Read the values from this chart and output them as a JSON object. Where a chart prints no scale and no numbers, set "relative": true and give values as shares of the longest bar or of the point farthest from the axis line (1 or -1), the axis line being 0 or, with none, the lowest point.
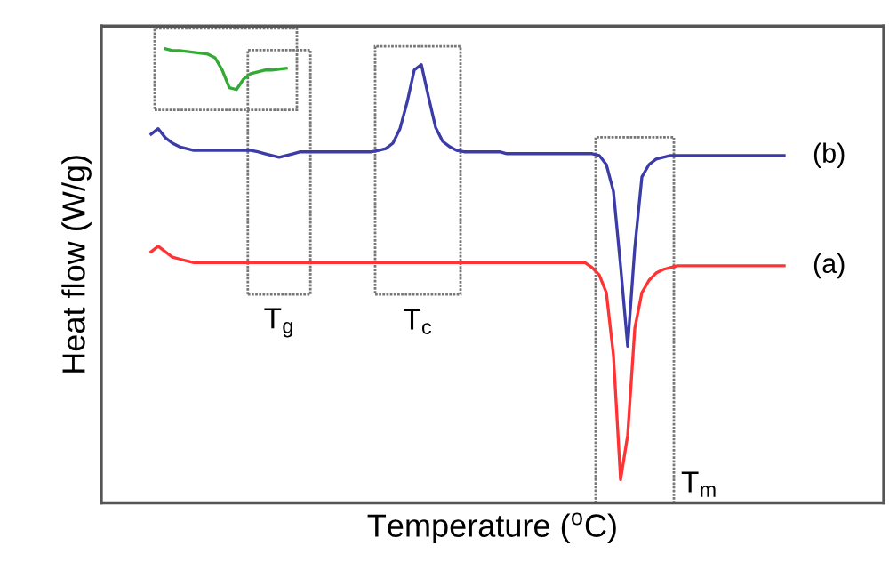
{
  "chart_data": {
    "type": "line",
    "relative": true,
    "xlabel": "Temperature ($^{o}$C)",
    "ylabel": "Heat flow (W/g)",
    "legend": false,
    "marker": "none",
    "line_style": "solid",
    "categories": [
      null,
      null,
      null,
      null,
      null,
      null,
      null,
      null,
      null,
      null,
      null,
      null,
      null,
      null,
      null,
      null,
      null,
      null,
      null,
      null,
      null,
      null,
      null,
      null,
      null,
      null,
      null,
      null,
      null,
      null,
      null,
      null,
      null,
      null,
      null,
      null,
      null,
      null,
      null,
      null,
      null,
      null,
      null,
      null,
      null,
      null,
      null,
      null,
      null,
      null,
      null,
      null,
      null,
      null,
      null,
      null,
      null,
      null,
      null,
      null,
      null,
      null,
      null,
      null,
      null,
      null,
      null,
      null,
      null,
      null,
      null,
      null,
      null,
      null,
      null,
      null,
      null,
      null,
      null,
      null,
      null,
      null,
      null,
      null,
      null,
      null,
      null,
      null,
      null,
      null
    ],
    "series": [
      {
        "name": "(b)",
        "color": "#3c3ca8",
        "values": [
          0.812,
          0.824,
          0.804,
          0.792,
          0.784,
          0.78,
          0.776,
          0.776,
          0.776,
          0.776,
          0.776,
          0.776,
          0.776,
          0.776,
          0.776,
          0.773,
          0.769,
          0.765,
          0.761,
          0.765,
          0.769,
          0.773,
          0.773,
          0.773,
          0.773,
          0.773,
          0.773,
          0.773,
          0.773,
          0.773,
          0.773,
          0.773,
          0.776,
          0.78,
          0.792,
          0.824,
          0.882,
          0.953,
          0.965,
          0.894,
          0.827,
          0.796,
          0.784,
          0.776,
          0.773,
          0.773,
          0.773,
          0.773,
          0.773,
          0.773,
          0.769,
          0.769,
          0.769,
          0.769,
          0.769,
          0.769,
          0.769,
          0.769,
          0.769,
          0.769,
          0.769,
          0.769,
          0.769,
          0.765,
          0.745,
          0.686,
          0.522,
          0.345,
          0.561,
          0.718,
          0.745,
          0.757,
          0.761,
          0.765,
          0.765,
          0.765,
          0.765,
          0.765,
          0.765,
          0.765,
          0.765,
          0.765,
          0.765,
          0.765,
          0.765,
          0.765,
          0.765,
          0.765,
          0.765,
          0.765
        ]
      },
      {
        "name": "(a)",
        "color": "#ff3333",
        "values": [
          0.553,
          0.565,
          0.553,
          0.541,
          0.537,
          0.533,
          0.529,
          0.529,
          0.529,
          0.529,
          0.529,
          0.529,
          0.529,
          0.529,
          0.529,
          0.529,
          0.529,
          0.529,
          0.529,
          0.529,
          0.529,
          0.529,
          0.529,
          0.529,
          0.529,
          0.529,
          0.529,
          0.529,
          0.529,
          0.529,
          0.529,
          0.529,
          0.529,
          0.529,
          0.529,
          0.529,
          0.529,
          0.529,
          0.529,
          0.529,
          0.529,
          0.529,
          0.529,
          0.529,
          0.529,
          0.529,
          0.529,
          0.529,
          0.529,
          0.529,
          0.529,
          0.529,
          0.529,
          0.529,
          0.529,
          0.529,
          0.529,
          0.529,
          0.529,
          0.529,
          0.529,
          0.529,
          0.518,
          0.502,
          0.463,
          0.325,
          0.051,
          0.149,
          0.384,
          0.463,
          0.49,
          0.506,
          0.514,
          0.518,
          0.522,
          0.522,
          0.522,
          0.522,
          0.522,
          0.522,
          0.522,
          0.522,
          0.522,
          0.522,
          0.522,
          0.522,
          0.522,
          0.522,
          0.522,
          0.522
        ]
      },
      {
        "color": "#33aa33",
        "values": [
          null,
          null,
          1.0,
          0.996,
          0.996,
          0.994,
          0.992,
          0.99,
          0.988,
          0.98,
          0.953,
          0.914,
          0.91,
          0.933,
          0.945,
          0.949,
          0.953,
          0.953,
          0.955,
          0.957,
          null,
          null,
          null,
          null,
          null,
          null,
          null,
          null,
          null,
          null,
          null,
          null,
          null,
          null,
          null,
          null,
          null,
          null,
          null,
          null,
          null,
          null,
          null,
          null,
          null,
          null,
          null,
          null,
          null,
          null,
          null,
          null,
          null,
          null,
          null,
          null,
          null,
          null,
          null,
          null,
          null,
          null,
          null,
          null,
          null,
          null,
          null,
          null,
          null,
          null,
          null,
          null,
          null,
          null,
          null,
          null,
          null,
          null,
          null,
          null,
          null,
          null,
          null,
          null,
          null,
          null,
          null,
          null,
          null,
          null
        ]
      }
    ],
    "annotations": [
      "T$_{g}$",
      "T$_{c}$",
      "T$_{m}$"
    ]
  }
}
